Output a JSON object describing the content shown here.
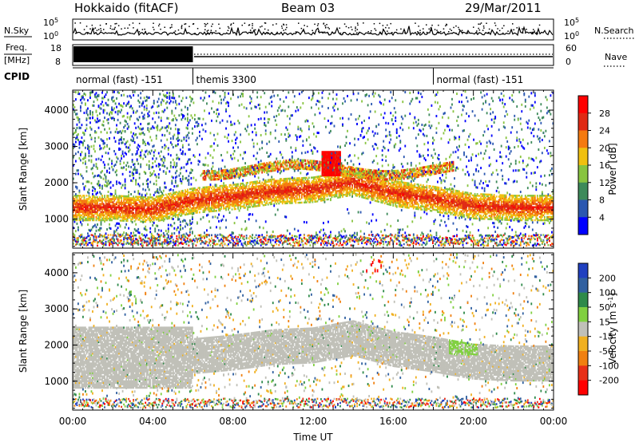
{
  "header": {
    "station": "Hokkaido (fitACF)",
    "beam": "Beam 03",
    "date": "29/Mar/2011"
  },
  "top_panels": {
    "nsky": {
      "label": "N.Sky",
      "scale_top": "10^5",
      "scale_bottom": "10^0"
    },
    "nsearch": {
      "label": "N.Search",
      "scale_top": "10^5",
      "scale_bottom": "10^0"
    },
    "freq": {
      "label_line1": "Freq.",
      "label_line2": "[MHz]",
      "tick_top": "18",
      "tick_bottom": "8"
    },
    "nave": {
      "label": "Nave",
      "tick_top": "60",
      "tick_bottom": "0"
    },
    "cpid": {
      "label": "CPID",
      "segments": [
        {
          "name": "normal (fast) -151",
          "start_hour": 0,
          "end_hour": 6.0
        },
        {
          "name": "themis 3300",
          "start_hour": 6.0,
          "end_hour": 18.0
        },
        {
          "name": "normal (fast) -151",
          "start_hour": 18.0,
          "end_hour": 24.0
        }
      ]
    }
  },
  "chart_data": [
    {
      "type": "heatmap",
      "name": "power",
      "ylabel": "Slant Range [km]",
      "yticks": [
        "1000",
        "2000",
        "3000",
        "4000"
      ],
      "ylim": [
        200,
        4550
      ],
      "xlim": [
        0,
        24
      ],
      "colorbar": {
        "label": "Power [dB]",
        "ticks": [
          "4",
          "8",
          "12",
          "16",
          "20",
          "24",
          "28"
        ],
        "colors": [
          "#0000ff",
          "#2a57b0",
          "#3d8a5a",
          "#88c440",
          "#f0c010",
          "#f57a10",
          "#e02a14",
          "#ff0000"
        ]
      },
      "features": [
        {
          "desc": "main band",
          "range_start": [
            1300,
            1300,
            1250,
            1500,
            1600,
            1750,
            1800,
            2000,
            1700,
            1550,
            1350,
            1300
          ],
          "hours": [
            0,
            2,
            4,
            6,
            8,
            10,
            12,
            14,
            16,
            18,
            20,
            22
          ]
        }
      ]
    },
    {
      "type": "heatmap",
      "name": "velocity",
      "ylabel": "Slant Range [km]",
      "xlabel": "Time UT",
      "yticks": [
        "1000",
        "2000",
        "3000",
        "4000"
      ],
      "xticks": [
        "00:00",
        "04:00",
        "08:00",
        "12:00",
        "16:00",
        "20:00",
        "00:00"
      ],
      "ylim": [
        200,
        4550
      ],
      "xlim": [
        0,
        24
      ],
      "colorbar": {
        "label": "Velocity [m s^-1]",
        "ticks": [
          "200",
          "100",
          "50",
          "15",
          "-15",
          "-50",
          "-100",
          "-200"
        ],
        "colors": [
          "#2040c0",
          "#3060a0",
          "#2e8a4a",
          "#80d040",
          "#c0c0b8",
          "#f0b020",
          "#f08010",
          "#e83018",
          "#ff0000"
        ]
      }
    }
  ]
}
